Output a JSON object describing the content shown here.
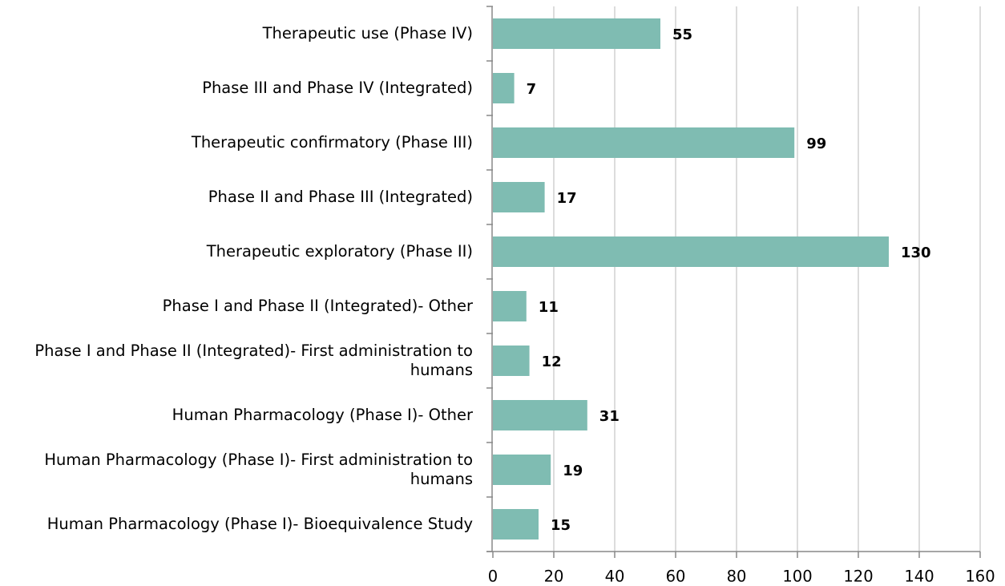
{
  "chart_data": {
    "type": "barh",
    "categories": [
      "Therapeutic use (Phase IV)",
      "Phase III and Phase IV (Integrated)",
      "Therapeutic confirmatory (Phase III)",
      "Phase II and Phase III (Integrated)",
      "Therapeutic exploratory (Phase II)",
      "Phase I and Phase II (Integrated)- Other",
      "Phase I and Phase II (Integrated)- First administration to humans",
      "Human Pharmacology (Phase I)- Other",
      "Human Pharmacology (Phase I)- First administration to humans",
      "Human Pharmacology (Phase I)- Bioequivalence Study"
    ],
    "values": [
      55,
      7,
      99,
      17,
      130,
      11,
      12,
      31,
      19,
      15
    ],
    "color": "#7fbcb2",
    "xlim": [
      0,
      160
    ],
    "xticks": [
      0,
      20,
      40,
      60,
      80,
      100,
      120,
      140,
      160
    ],
    "grid": true
  }
}
